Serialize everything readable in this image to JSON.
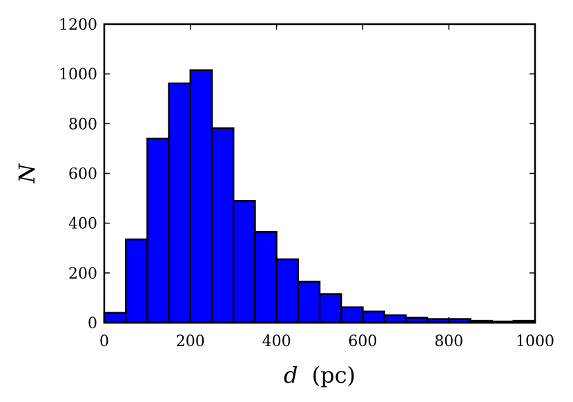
{
  "chart_data": {
    "type": "bar",
    "xlabel_var": "d",
    "xlabel_unit": "(pc)",
    "ylabel": "N",
    "xlim": [
      0,
      1000
    ],
    "ylim": [
      0,
      1200
    ],
    "bin_width": 50,
    "bin_edges": [
      0,
      50,
      100,
      150,
      200,
      250,
      300,
      350,
      400,
      450,
      500,
      550,
      600,
      650,
      700,
      750,
      800,
      850,
      900,
      950,
      1000
    ],
    "values": [
      40,
      335,
      740,
      962,
      1015,
      782,
      490,
      365,
      255,
      165,
      115,
      62,
      45,
      30,
      20,
      15,
      15,
      8,
      5,
      8
    ],
    "xticks": [
      "0",
      "200",
      "400",
      "600",
      "800",
      "1000"
    ],
    "yticks": [
      "0",
      "200",
      "400",
      "600",
      "800",
      "1000",
      "1200"
    ],
    "bar_color": "#0000ff",
    "edge_color": "#000000",
    "grid": false
  }
}
